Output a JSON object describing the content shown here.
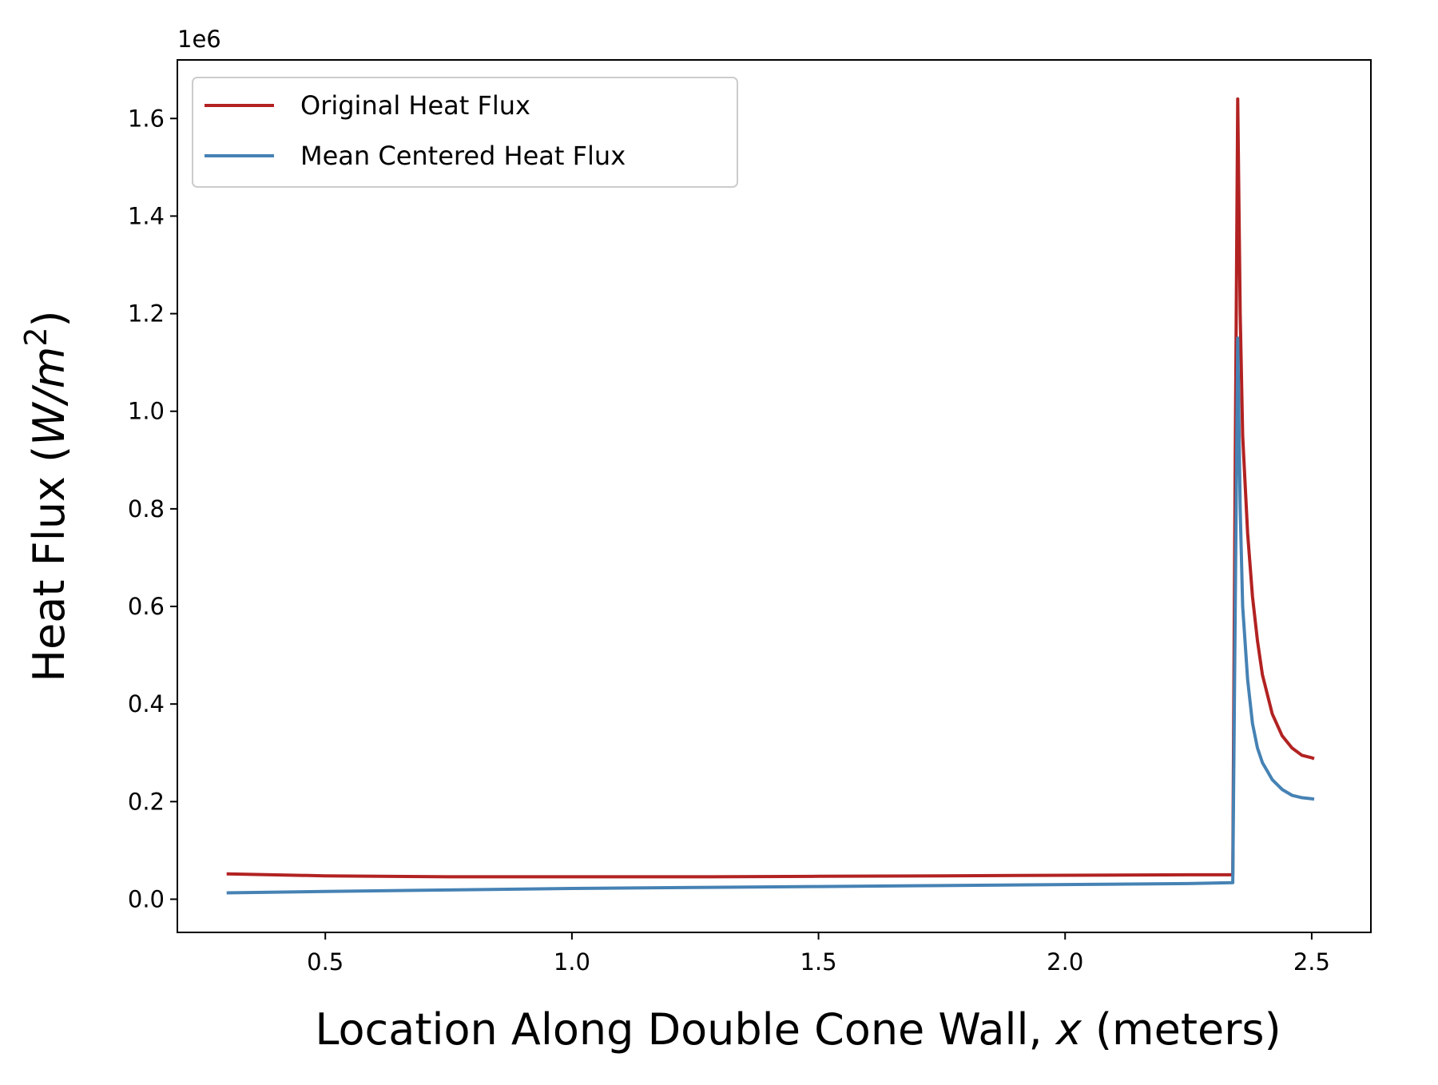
{
  "chart_data": {
    "type": "line",
    "title": "",
    "xlabel_parts": [
      {
        "text": "Location Along Double Cone Wall, ",
        "italic": false
      },
      {
        "text": "x",
        "italic": true
      },
      {
        "text": " (meters)",
        "italic": false
      }
    ],
    "ylabel_parts": [
      {
        "text": "Heat Flux (",
        "italic": false,
        "sup": false
      },
      {
        "text": "W/m",
        "italic": true,
        "sup": false
      },
      {
        "text": "2",
        "italic": false,
        "sup": true
      },
      {
        "text": ")",
        "italic": false,
        "sup": false
      }
    ],
    "y_offset_label": "1e6",
    "xlim": [
      0.2,
      2.62
    ],
    "ylim": [
      -0.068,
      1.72
    ],
    "x_ticks": [
      {
        "value": 0.5,
        "label": "0.5"
      },
      {
        "value": 1.0,
        "label": "1.0"
      },
      {
        "value": 1.5,
        "label": "1.5"
      },
      {
        "value": 2.0,
        "label": "2.0"
      },
      {
        "value": 2.5,
        "label": "2.5"
      }
    ],
    "y_ticks": [
      {
        "value": 0.0,
        "label": "0.0"
      },
      {
        "value": 0.2,
        "label": "0.2"
      },
      {
        "value": 0.4,
        "label": "0.4"
      },
      {
        "value": 0.6,
        "label": "0.6"
      },
      {
        "value": 0.8,
        "label": "0.8"
      },
      {
        "value": 1.0,
        "label": "1.0"
      },
      {
        "value": 1.2,
        "label": "1.2"
      },
      {
        "value": 1.4,
        "label": "1.4"
      },
      {
        "value": 1.6,
        "label": "1.6"
      }
    ],
    "grid": false,
    "legend_position": "top-left",
    "series": [
      {
        "name": "Original Heat Flux",
        "color": "#b22222",
        "points": [
          [
            0.3,
            0.052
          ],
          [
            0.5,
            0.048
          ],
          [
            0.75,
            0.046
          ],
          [
            1.0,
            0.046
          ],
          [
            1.25,
            0.046
          ],
          [
            1.5,
            0.047
          ],
          [
            1.75,
            0.048
          ],
          [
            2.0,
            0.049
          ],
          [
            2.25,
            0.05
          ],
          [
            2.34,
            0.05
          ],
          [
            2.345,
            0.9
          ],
          [
            2.35,
            1.64
          ],
          [
            2.355,
            1.2
          ],
          [
            2.36,
            0.95
          ],
          [
            2.37,
            0.75
          ],
          [
            2.38,
            0.62
          ],
          [
            2.39,
            0.53
          ],
          [
            2.4,
            0.46
          ],
          [
            2.42,
            0.38
          ],
          [
            2.44,
            0.335
          ],
          [
            2.46,
            0.31
          ],
          [
            2.48,
            0.295
          ],
          [
            2.5,
            0.29
          ],
          [
            2.505,
            0.288
          ]
        ]
      },
      {
        "name": "Mean Centered Heat Flux",
        "color": "#4682b4",
        "points": [
          [
            0.3,
            0.013
          ],
          [
            0.5,
            0.016
          ],
          [
            0.75,
            0.019
          ],
          [
            1.0,
            0.022
          ],
          [
            1.25,
            0.024
          ],
          [
            1.5,
            0.026
          ],
          [
            1.75,
            0.028
          ],
          [
            2.0,
            0.03
          ],
          [
            2.25,
            0.032
          ],
          [
            2.34,
            0.034
          ],
          [
            2.345,
            0.6
          ],
          [
            2.35,
            1.15
          ],
          [
            2.355,
            0.8
          ],
          [
            2.36,
            0.6
          ],
          [
            2.37,
            0.45
          ],
          [
            2.38,
            0.36
          ],
          [
            2.39,
            0.31
          ],
          [
            2.4,
            0.28
          ],
          [
            2.42,
            0.245
          ],
          [
            2.44,
            0.225
          ],
          [
            2.46,
            0.213
          ],
          [
            2.48,
            0.208
          ],
          [
            2.5,
            0.206
          ],
          [
            2.505,
            0.205
          ]
        ]
      }
    ]
  }
}
